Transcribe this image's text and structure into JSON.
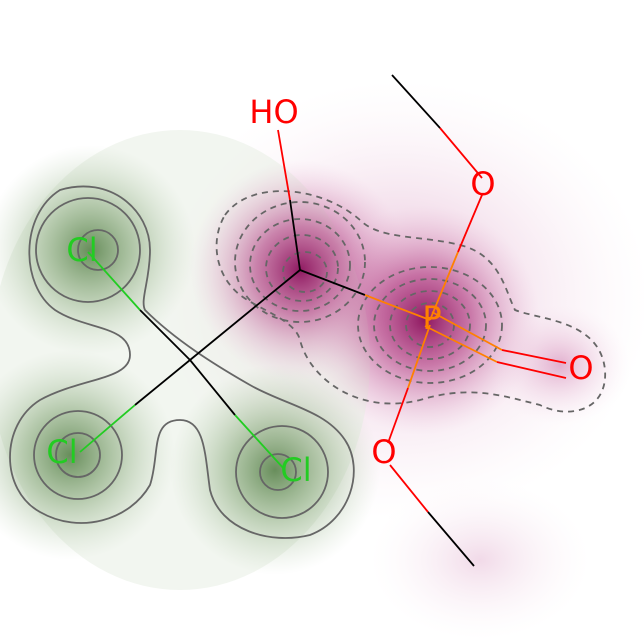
{
  "molecule": {
    "atoms": [
      {
        "id": "cl1",
        "label": "Cl",
        "color": "#22cc22"
      },
      {
        "id": "cl2",
        "label": "Cl",
        "color": "#22cc22"
      },
      {
        "id": "cl3",
        "label": "Cl",
        "color": "#22cc22"
      },
      {
        "id": "oh",
        "label": "HO",
        "color": "#ff0000"
      },
      {
        "id": "p",
        "label": "P",
        "color": "#ff8000"
      },
      {
        "id": "o_top",
        "label": "O",
        "color": "#ff0000"
      },
      {
        "id": "o_right",
        "label": "O",
        "color": "#ff0000"
      },
      {
        "id": "o_bottom",
        "label": "O",
        "color": "#ff0000"
      }
    ]
  },
  "colors": {
    "positive_contribution": "#3a6b2a",
    "negative_contribution": "#9c1466",
    "bond_carbon": "#000000",
    "contour_line": "#666666"
  }
}
